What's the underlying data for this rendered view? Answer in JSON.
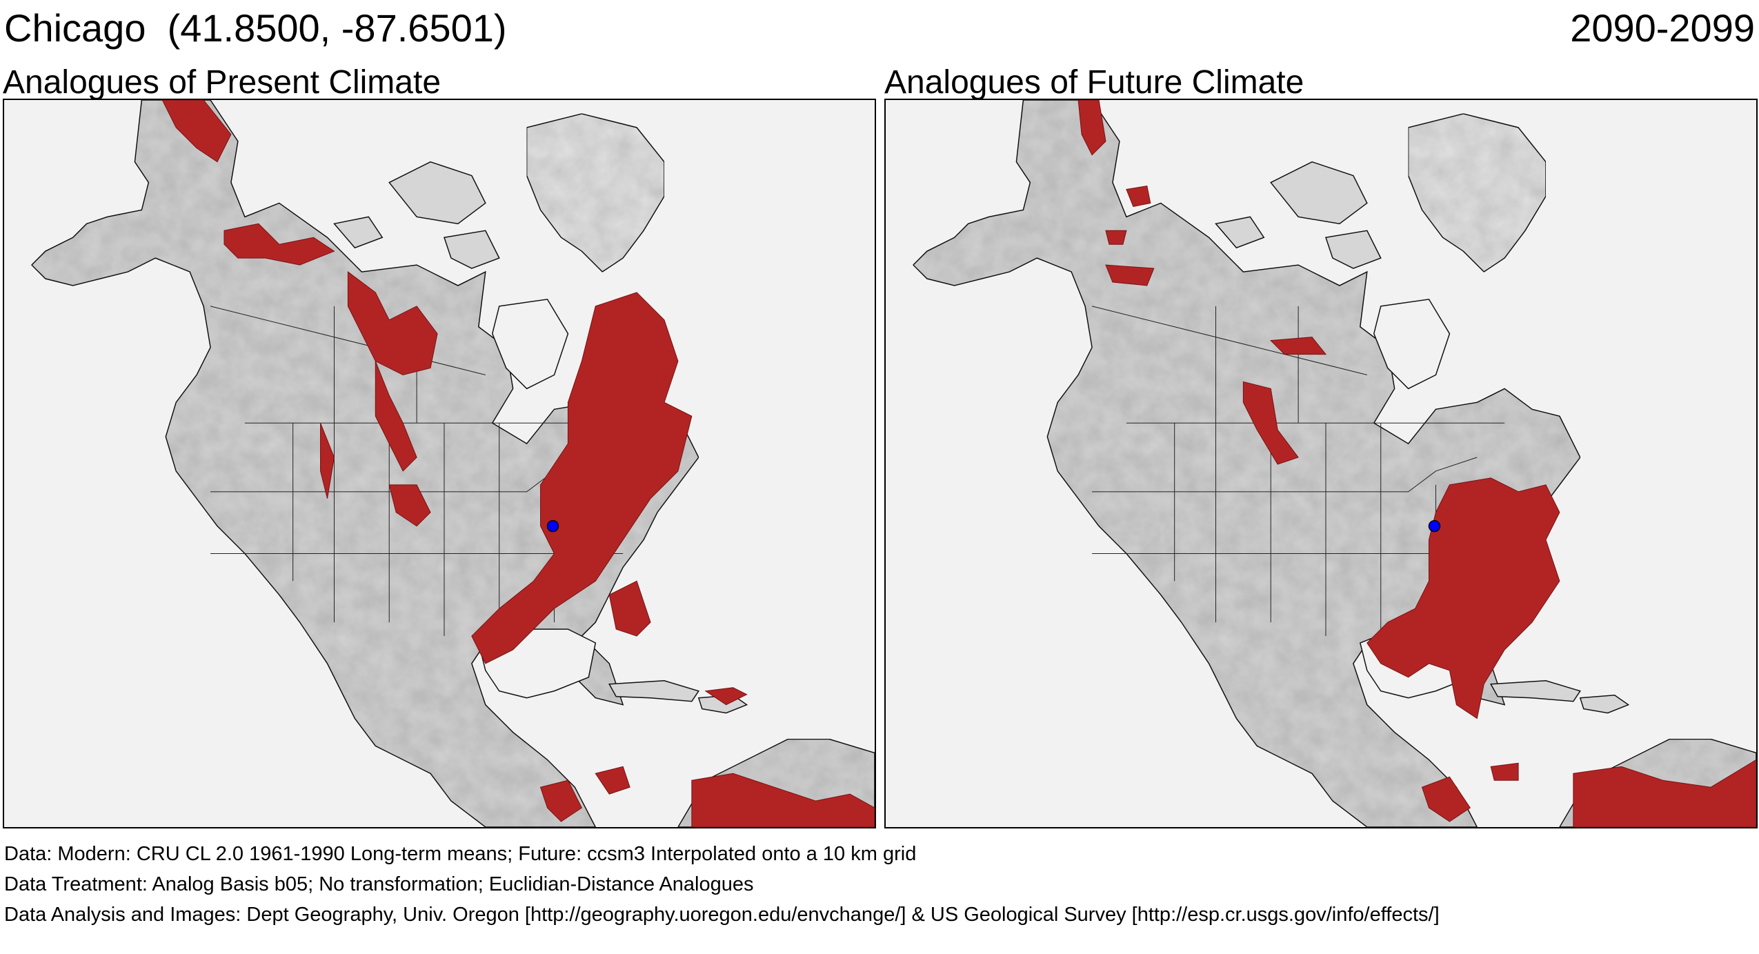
{
  "header": {
    "city": "Chicago",
    "coordinates": "(41.8500, -87.6501)",
    "period": "2090-2099"
  },
  "panels": [
    {
      "title": "Analogues of Present Climate"
    },
    {
      "title": "Analogues of Future Climate"
    }
  ],
  "footer": {
    "data_line": "Data:  Modern: CRU CL 2.0 1961-1990 Long-term means; Future: ccsm3 Interpolated onto a 10 km grid",
    "treatment_line": "Data Treatment:  Analog Basis b05; No transformation; Euclidian-Distance Analogues",
    "analysis_line": "Data Analysis and Images:  Dept Geography, Univ. Oregon [http://geography.uoregon.edu/envchange/] & US Geological Survey [http://esp.cr.usgs.gov/info/effects/]"
  },
  "colors": {
    "analogue_fill": "#b22424",
    "land": "#d9d9d9",
    "ocean": "#f2f2f2",
    "site_marker": "#0000ff"
  },
  "legend_semantics": {
    "red_regions": "analogue areas",
    "blue_dot": "site location"
  }
}
